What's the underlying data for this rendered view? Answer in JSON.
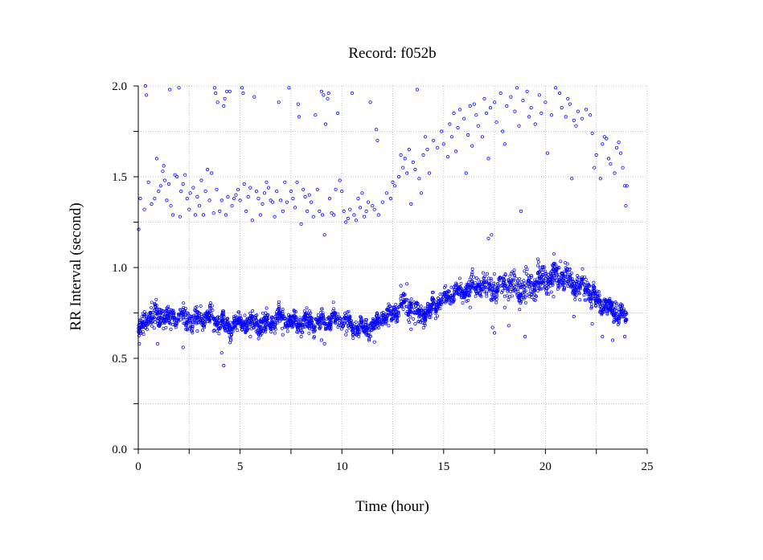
{
  "chart_data": {
    "type": "scatter",
    "title": "Record:  f052b",
    "xlabel": "Time (hour)",
    "ylabel": "RR Interval (second)",
    "xlim": [
      0,
      25
    ],
    "ylim": [
      0.0,
      2.0
    ],
    "x_ticks": [
      {
        "value": 0,
        "label": "0"
      },
      {
        "value": 5,
        "label": "5"
      },
      {
        "value": 10,
        "label": "10"
      },
      {
        "value": 15,
        "label": "15"
      },
      {
        "value": 20,
        "label": "20"
      },
      {
        "value": 25,
        "label": "25"
      }
    ],
    "y_ticks": [
      {
        "value": 0.0,
        "label": "0.0"
      },
      {
        "value": 0.5,
        "label": "0.5"
      },
      {
        "value": 1.0,
        "label": "1.0"
      },
      {
        "value": 1.5,
        "label": "1.5"
      },
      {
        "value": 2.0,
        "label": "2.0"
      }
    ],
    "x_minor_step": 2.5,
    "y_minor_step": 0.25,
    "grid": true,
    "marker": "open-circle",
    "colors": {
      "points": "#0000ff",
      "grid": "#b0b0b0",
      "axes": "#000000"
    },
    "series": [
      {
        "values": [
          [
            0.02,
            1.21
          ],
          [
            0.1,
            1.38
          ],
          [
            0.3,
            1.32
          ],
          [
            0.35,
            2.0
          ],
          [
            0.4,
            1.95
          ],
          [
            0.5,
            1.47
          ],
          [
            0.65,
            1.35
          ],
          [
            0.8,
            1.38
          ],
          [
            0.9,
            1.6
          ],
          [
            1.0,
            1.42
          ],
          [
            1.1,
            1.45
          ],
          [
            1.2,
            1.53
          ],
          [
            1.25,
            1.56
          ],
          [
            1.3,
            1.48
          ],
          [
            1.4,
            1.37
          ],
          [
            1.5,
            1.46
          ],
          [
            1.55,
            1.98
          ],
          [
            1.6,
            1.34
          ],
          [
            1.7,
            1.29
          ],
          [
            1.8,
            1.51
          ],
          [
            1.9,
            1.5
          ],
          [
            2.0,
            1.99
          ],
          [
            2.05,
            1.28
          ],
          [
            2.1,
            1.42
          ],
          [
            2.2,
            1.46
          ],
          [
            2.3,
            1.51
          ],
          [
            2.4,
            1.38
          ],
          [
            2.5,
            1.32
          ],
          [
            2.55,
            1.41
          ],
          [
            2.7,
            1.44
          ],
          [
            2.8,
            1.29
          ],
          [
            2.9,
            1.39
          ],
          [
            3.0,
            1.34
          ],
          [
            3.1,
            1.48
          ],
          [
            3.2,
            1.29
          ],
          [
            3.3,
            1.42
          ],
          [
            3.4,
            1.54
          ],
          [
            3.5,
            1.37
          ],
          [
            3.6,
            1.52
          ],
          [
            3.7,
            1.3
          ],
          [
            3.75,
            1.99
          ],
          [
            3.8,
            1.96
          ],
          [
            3.85,
            1.43
          ],
          [
            3.9,
            1.91
          ],
          [
            4.0,
            1.31
          ],
          [
            4.1,
            1.37
          ],
          [
            4.2,
            1.89
          ],
          [
            4.25,
            1.93
          ],
          [
            4.3,
            1.29
          ],
          [
            4.35,
            1.97
          ],
          [
            4.4,
            1.39
          ],
          [
            4.5,
            1.97
          ],
          [
            4.6,
            1.34
          ],
          [
            4.7,
            1.38
          ],
          [
            4.8,
            1.4
          ],
          [
            4.9,
            1.43
          ],
          [
            5.0,
            1.37
          ],
          [
            5.1,
            1.99
          ],
          [
            5.15,
            1.96
          ],
          [
            5.2,
            1.46
          ],
          [
            5.3,
            1.31
          ],
          [
            5.4,
            1.39
          ],
          [
            5.5,
            1.44
          ],
          [
            5.6,
            1.26
          ],
          [
            5.7,
            1.94
          ],
          [
            5.8,
            1.42
          ],
          [
            5.9,
            1.38
          ],
          [
            6.0,
            1.29
          ],
          [
            6.1,
            1.35
          ],
          [
            6.2,
            1.41
          ],
          [
            6.3,
            1.47
          ],
          [
            6.4,
            1.44
          ],
          [
            6.5,
            1.37
          ],
          [
            6.6,
            1.36
          ],
          [
            6.7,
            1.28
          ],
          [
            6.8,
            1.42
          ],
          [
            6.9,
            1.91
          ],
          [
            7.0,
            1.37
          ],
          [
            7.1,
            1.31
          ],
          [
            7.2,
            1.47
          ],
          [
            7.3,
            1.36
          ],
          [
            7.4,
            1.99
          ],
          [
            7.5,
            1.42
          ],
          [
            7.6,
            1.38
          ],
          [
            7.7,
            1.33
          ],
          [
            7.8,
            1.47
          ],
          [
            7.85,
            1.9
          ],
          [
            7.9,
            1.83
          ],
          [
            8.0,
            1.24
          ],
          [
            8.1,
            1.43
          ],
          [
            8.2,
            1.39
          ],
          [
            8.3,
            1.31
          ],
          [
            8.4,
            1.4
          ],
          [
            8.5,
            1.36
          ],
          [
            8.6,
            1.28
          ],
          [
            8.7,
            1.84
          ],
          [
            8.8,
            1.43
          ],
          [
            8.9,
            1.31
          ],
          [
            9.0,
            1.97
          ],
          [
            9.05,
            1.29
          ],
          [
            9.1,
            1.95
          ],
          [
            9.15,
            1.18
          ],
          [
            9.2,
            1.79
          ],
          [
            9.3,
            1.93
          ],
          [
            9.35,
            1.96
          ],
          [
            9.4,
            1.38
          ],
          [
            9.5,
            1.3
          ],
          [
            9.6,
            1.29
          ],
          [
            9.7,
            1.43
          ],
          [
            9.8,
            1.85
          ],
          [
            9.9,
            1.48
          ],
          [
            10.0,
            1.42
          ],
          [
            10.1,
            1.31
          ],
          [
            10.2,
            1.25
          ],
          [
            10.3,
            1.27
          ],
          [
            10.4,
            1.32
          ],
          [
            10.5,
            1.96
          ],
          [
            10.6,
            1.29
          ],
          [
            10.7,
            1.26
          ],
          [
            10.8,
            1.38
          ],
          [
            10.9,
            1.33
          ],
          [
            11.0,
            1.41
          ],
          [
            11.1,
            1.28
          ],
          [
            11.2,
            1.31
          ],
          [
            11.3,
            1.36
          ],
          [
            11.4,
            1.91
          ],
          [
            11.5,
            1.34
          ],
          [
            11.6,
            1.32
          ],
          [
            11.7,
            1.76
          ],
          [
            11.75,
            1.7
          ],
          [
            11.8,
            1.29
          ],
          [
            12.0,
            1.36
          ],
          [
            12.2,
            1.41
          ],
          [
            12.4,
            1.38
          ],
          [
            12.5,
            1.47
          ],
          [
            12.6,
            1.45
          ],
          [
            12.8,
            1.5
          ],
          [
            12.9,
            1.62
          ],
          [
            13.0,
            1.55
          ],
          [
            13.1,
            1.6
          ],
          [
            13.2,
            1.52
          ],
          [
            13.3,
            1.65
          ],
          [
            13.4,
            1.35
          ],
          [
            13.5,
            1.58
          ],
          [
            13.6,
            1.54
          ],
          [
            13.7,
            1.98
          ],
          [
            13.8,
            1.49
          ],
          [
            13.9,
            1.41
          ],
          [
            14.0,
            1.62
          ],
          [
            14.1,
            1.72
          ],
          [
            14.2,
            1.65
          ],
          [
            14.3,
            1.52
          ],
          [
            14.5,
            1.7
          ],
          [
            14.7,
            1.66
          ],
          [
            14.9,
            1.75
          ],
          [
            15.0,
            1.68
          ],
          [
            15.2,
            1.61
          ],
          [
            15.3,
            1.79
          ],
          [
            15.4,
            1.72
          ],
          [
            15.5,
            1.85
          ],
          [
            15.6,
            1.64
          ],
          [
            15.7,
            1.77
          ],
          [
            15.8,
            1.87
          ],
          [
            16.0,
            1.82
          ],
          [
            16.1,
            1.52
          ],
          [
            16.2,
            1.73
          ],
          [
            16.3,
            1.89
          ],
          [
            16.4,
            1.67
          ],
          [
            16.5,
            1.9
          ],
          [
            16.6,
            1.84
          ],
          [
            16.7,
            1.78
          ],
          [
            16.9,
            1.72
          ],
          [
            17.0,
            1.93
          ],
          [
            17.1,
            1.85
          ],
          [
            17.2,
            1.6
          ],
          [
            17.3,
            1.88
          ],
          [
            17.5,
            1.91
          ],
          [
            17.6,
            1.8
          ],
          [
            17.8,
            1.96
          ],
          [
            17.9,
            1.75
          ],
          [
            18.0,
            1.68
          ],
          [
            18.1,
            1.89
          ],
          [
            18.3,
            1.94
          ],
          [
            18.5,
            1.86
          ],
          [
            18.6,
            1.99
          ],
          [
            18.7,
            1.78
          ],
          [
            18.8,
            1.31
          ],
          [
            18.9,
            1.92
          ],
          [
            19.1,
            1.97
          ],
          [
            19.2,
            1.83
          ],
          [
            19.3,
            1.88
          ],
          [
            19.5,
            1.79
          ],
          [
            19.7,
            1.95
          ],
          [
            19.8,
            1.85
          ],
          [
            20.0,
            1.91
          ],
          [
            20.1,
            1.63
          ],
          [
            20.3,
            1.84
          ],
          [
            20.5,
            1.99
          ],
          [
            20.7,
            1.96
          ],
          [
            20.8,
            1.88
          ],
          [
            21.0,
            1.83
          ],
          [
            21.1,
            1.93
          ],
          [
            21.2,
            1.9
          ],
          [
            21.3,
            1.49
          ],
          [
            21.4,
            1.81
          ],
          [
            21.5,
            1.78
          ],
          [
            21.6,
            1.86
          ],
          [
            21.8,
            1.82
          ],
          [
            22.0,
            1.87
          ],
          [
            22.2,
            1.84
          ],
          [
            22.3,
            1.74
          ],
          [
            22.4,
            1.55
          ],
          [
            22.5,
            1.62
          ],
          [
            22.7,
            1.49
          ],
          [
            22.8,
            1.68
          ],
          [
            22.9,
            1.72
          ],
          [
            23.0,
            1.71
          ],
          [
            23.1,
            1.6
          ],
          [
            23.2,
            1.57
          ],
          [
            23.4,
            1.52
          ],
          [
            23.5,
            1.66
          ],
          [
            23.6,
            1.69
          ],
          [
            23.7,
            1.63
          ],
          [
            23.8,
            1.55
          ],
          [
            23.9,
            1.45
          ],
          [
            23.95,
            1.34
          ],
          [
            24.0,
            1.45
          ],
          [
            0.05,
            0.58
          ],
          [
            0.95,
            0.58
          ],
          [
            1.6,
            0.66
          ],
          [
            2.2,
            0.56
          ],
          [
            2.9,
            0.65
          ],
          [
            3.7,
            0.65
          ],
          [
            4.1,
            0.53
          ],
          [
            4.2,
            0.46
          ],
          [
            4.4,
            0.66
          ],
          [
            5.5,
            0.62
          ],
          [
            6.5,
            0.67
          ],
          [
            7.1,
            0.63
          ],
          [
            8.0,
            0.62
          ],
          [
            9.0,
            0.6
          ],
          [
            9.15,
            0.58
          ],
          [
            10.2,
            0.63
          ],
          [
            11.2,
            0.63
          ],
          [
            11.6,
            0.59
          ],
          [
            12.3,
            0.68
          ],
          [
            12.9,
            0.9
          ],
          [
            13.2,
            0.91
          ],
          [
            13.4,
            0.66
          ],
          [
            13.6,
            0.69
          ],
          [
            16.3,
            0.78
          ],
          [
            16.8,
            0.86
          ],
          [
            17.2,
            1.16
          ],
          [
            17.35,
            1.18
          ],
          [
            17.4,
            0.67
          ],
          [
            17.5,
            0.64
          ],
          [
            18.0,
            0.78
          ],
          [
            18.2,
            0.68
          ],
          [
            19.0,
            0.62
          ],
          [
            19.5,
            0.82
          ],
          [
            20.4,
            0.84
          ],
          [
            21.4,
            0.73
          ],
          [
            22.3,
            0.69
          ],
          [
            22.8,
            0.62
          ],
          [
            23.3,
            0.6
          ],
          [
            23.9,
            0.62
          ]
        ]
      }
    ],
    "density_band": [
      [
        0.0,
        0.65,
        0.06
      ],
      [
        0.5,
        0.72,
        0.08
      ],
      [
        1.0,
        0.74,
        0.09
      ],
      [
        1.5,
        0.72,
        0.06
      ],
      [
        2.0,
        0.73,
        0.07
      ],
      [
        2.5,
        0.71,
        0.07
      ],
      [
        3.0,
        0.72,
        0.07
      ],
      [
        3.5,
        0.73,
        0.07
      ],
      [
        4.0,
        0.69,
        0.06
      ],
      [
        4.5,
        0.67,
        0.06
      ],
      [
        5.0,
        0.69,
        0.06
      ],
      [
        5.5,
        0.7,
        0.06
      ],
      [
        6.0,
        0.68,
        0.07
      ],
      [
        6.5,
        0.7,
        0.06
      ],
      [
        7.0,
        0.72,
        0.06
      ],
      [
        7.5,
        0.7,
        0.05
      ],
      [
        8.0,
        0.7,
        0.06
      ],
      [
        8.5,
        0.7,
        0.06
      ],
      [
        9.0,
        0.7,
        0.07
      ],
      [
        9.5,
        0.72,
        0.06
      ],
      [
        10.0,
        0.71,
        0.06
      ],
      [
        10.5,
        0.68,
        0.06
      ],
      [
        11.0,
        0.66,
        0.05
      ],
      [
        11.5,
        0.67,
        0.05
      ],
      [
        12.0,
        0.72,
        0.05
      ],
      [
        12.5,
        0.75,
        0.05
      ],
      [
        13.0,
        0.8,
        0.07
      ],
      [
        13.5,
        0.77,
        0.08
      ],
      [
        14.0,
        0.74,
        0.07
      ],
      [
        14.5,
        0.79,
        0.07
      ],
      [
        15.0,
        0.83,
        0.06
      ],
      [
        15.5,
        0.86,
        0.06
      ],
      [
        16.0,
        0.87,
        0.06
      ],
      [
        16.5,
        0.89,
        0.07
      ],
      [
        17.0,
        0.9,
        0.07
      ],
      [
        17.5,
        0.88,
        0.08
      ],
      [
        18.0,
        0.92,
        0.08
      ],
      [
        18.5,
        0.9,
        0.1
      ],
      [
        19.0,
        0.88,
        0.12
      ],
      [
        19.5,
        0.92,
        0.1
      ],
      [
        20.0,
        0.94,
        0.1
      ],
      [
        20.5,
        0.96,
        0.1
      ],
      [
        21.0,
        0.95,
        0.09
      ],
      [
        21.5,
        0.9,
        0.08
      ],
      [
        22.0,
        0.9,
        0.08
      ],
      [
        22.5,
        0.82,
        0.07
      ],
      [
        23.0,
        0.79,
        0.06
      ],
      [
        23.5,
        0.75,
        0.07
      ],
      [
        24.0,
        0.72,
        0.06
      ]
    ]
  }
}
